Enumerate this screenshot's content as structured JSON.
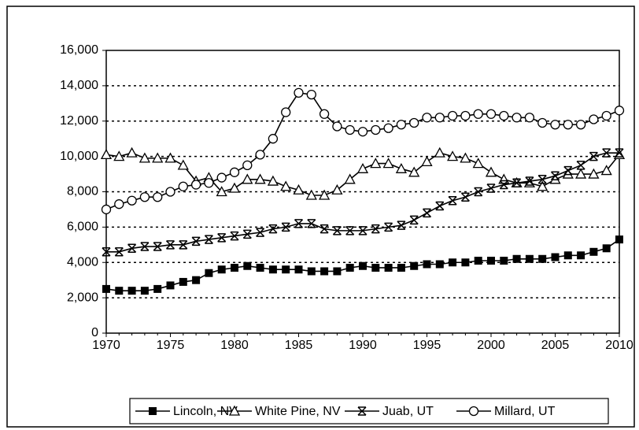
{
  "chart_data": {
    "type": "line",
    "x": [
      1970,
      1971,
      1972,
      1973,
      1974,
      1975,
      1976,
      1977,
      1978,
      1979,
      1980,
      1981,
      1982,
      1983,
      1984,
      1985,
      1986,
      1987,
      1988,
      1989,
      1990,
      1991,
      1992,
      1993,
      1994,
      1995,
      1996,
      1997,
      1998,
      1999,
      2000,
      2001,
      2002,
      2003,
      2004,
      2005,
      2006,
      2007,
      2008,
      2009,
      2010
    ],
    "xlim": [
      1970,
      2010
    ],
    "xticks": [
      1970,
      1975,
      1980,
      1985,
      1990,
      1995,
      2000,
      2005,
      2010
    ],
    "ylim": [
      0,
      16000
    ],
    "yticks": [
      0,
      {
        "value": 2000,
        "label": "2,000"
      },
      {
        "value": 4000,
        "label": "4,000"
      },
      {
        "value": 6000,
        "label": "6,000"
      },
      {
        "value": 8000,
        "label": "8,000"
      },
      {
        "value": 10000,
        "label": "10,000"
      },
      {
        "value": 12000,
        "label": "12,000"
      },
      {
        "value": 14000,
        "label": "14,000"
      },
      {
        "value": 16000,
        "label": "16,000"
      }
    ],
    "grid": true,
    "legend": "bottom",
    "series": [
      {
        "name": "Lincoln, NV",
        "color": "#000000",
        "marker": "square",
        "values": [
          2500,
          2400,
          2400,
          2400,
          2500,
          2700,
          2900,
          3000,
          3400,
          3600,
          3700,
          3800,
          3700,
          3600,
          3600,
          3600,
          3500,
          3500,
          3500,
          3700,
          3800,
          3700,
          3700,
          3700,
          3800,
          3900,
          3900,
          4000,
          4000,
          4100,
          4100,
          4100,
          4200,
          4200,
          4200,
          4300,
          4400,
          4400,
          4600,
          4800,
          5300
        ]
      },
      {
        "name": "White Pine, NV",
        "color": "#000000",
        "marker": "triangle",
        "values": [
          10100,
          10000,
          10200,
          9900,
          9900,
          9900,
          9500,
          8600,
          8800,
          8000,
          8200,
          8700,
          8700,
          8600,
          8300,
          8100,
          7800,
          7800,
          8100,
          8700,
          9300,
          9600,
          9600,
          9300,
          9100,
          9700,
          10200,
          10000,
          9900,
          9600,
          9100,
          8700,
          8500,
          8500,
          8300,
          8700,
          9000,
          9000,
          9000,
          9200,
          10100
        ]
      },
      {
        "name": "Juab, UT",
        "color": "#000000",
        "marker": "star",
        "values": [
          4600,
          4600,
          4800,
          4900,
          4900,
          5000,
          5000,
          5200,
          5300,
          5400,
          5500,
          5600,
          5700,
          5900,
          6000,
          6200,
          6200,
          5900,
          5800,
          5800,
          5800,
          5900,
          6000,
          6100,
          6400,
          6800,
          7200,
          7500,
          7700,
          8000,
          8200,
          8400,
          8500,
          8600,
          8700,
          8900,
          9200,
          9500,
          10000,
          10200,
          10200
        ]
      },
      {
        "name": "Millard, UT",
        "color": "#000000",
        "marker": "circle",
        "values": [
          7000,
          7300,
          7500,
          7700,
          7700,
          8000,
          8300,
          8400,
          8500,
          8800,
          9100,
          9500,
          10100,
          11000,
          12500,
          13600,
          13500,
          12400,
          11700,
          11500,
          11400,
          11500,
          11600,
          11800,
          11900,
          12200,
          12200,
          12300,
          12300,
          12400,
          12400,
          12300,
          12200,
          12200,
          11900,
          11800,
          11800,
          11800,
          12100,
          12300,
          12600
        ]
      }
    ]
  }
}
